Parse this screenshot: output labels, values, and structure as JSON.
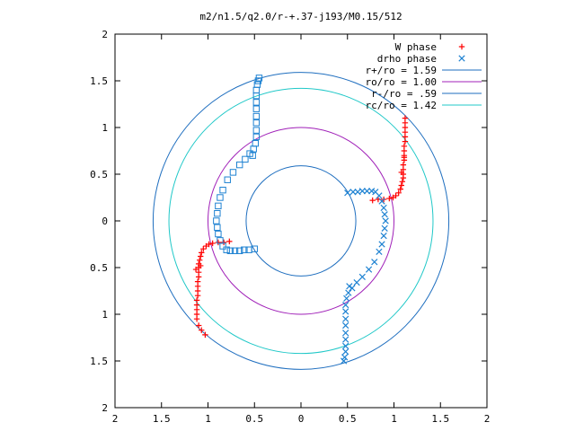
{
  "chart_data": {
    "type": "scatter",
    "title": "m2/n1.5/q2.0/r-+.37-j193/M0.15/512",
    "xlabel": "",
    "ylabel": "",
    "xlim": [
      -2,
      2
    ],
    "ylim": [
      -2,
      2
    ],
    "grid": false,
    "legend_position": "top-right",
    "x_tick_labels": [
      "2",
      "1.5",
      "1",
      "0.5",
      "0",
      "0.5",
      "1",
      "1.5",
      "2"
    ],
    "y_tick_labels": [
      "2",
      "1.5",
      "1",
      "0.5",
      "0",
      "0.5",
      "1",
      "1.5",
      "2"
    ],
    "x_ticks": [
      -2,
      -1.5,
      -1,
      -0.5,
      0,
      0.5,
      1,
      1.5,
      2
    ],
    "y_ticks": [
      -2,
      -1.5,
      -1,
      -0.5,
      0,
      0.5,
      1,
      1.5,
      2
    ],
    "circles": [
      {
        "name": "r+/ro = 1.59",
        "radius": 1.59,
        "color": "#1e6ebf"
      },
      {
        "name": "ro/ro = 1.00",
        "radius": 1.0,
        "color": "#a020b8"
      },
      {
        "name": "r-/ro = .59",
        "radius": 0.59,
        "color": "#1e6ebf"
      },
      {
        "name": "rc/ro = 1.42",
        "radius": 1.42,
        "color": "#20c8c8"
      }
    ],
    "series": [
      {
        "name": "W phase",
        "marker": "plus",
        "color": "#ff0000",
        "points": [
          [
            0.77,
            0.22
          ],
          [
            0.83,
            0.23
          ],
          [
            0.89,
            0.23
          ],
          [
            0.95,
            0.24
          ],
          [
            0.99,
            0.25
          ],
          [
            1.02,
            0.27
          ],
          [
            1.05,
            0.3
          ],
          [
            1.07,
            0.34
          ],
          [
            1.08,
            0.38
          ],
          [
            1.09,
            0.42
          ],
          [
            1.1,
            0.46
          ],
          [
            1.1,
            0.5
          ],
          [
            1.1,
            0.55
          ],
          [
            1.1,
            0.6
          ],
          [
            1.11,
            0.65
          ],
          [
            1.11,
            0.7
          ],
          [
            1.11,
            0.75
          ],
          [
            1.11,
            0.8
          ],
          [
            1.12,
            0.85
          ],
          [
            1.12,
            0.9
          ],
          [
            1.12,
            0.95
          ],
          [
            1.12,
            1.0
          ],
          [
            1.12,
            1.05
          ],
          [
            1.12,
            1.1
          ],
          [
            1.11,
            0.68
          ],
          [
            1.08,
            0.52
          ],
          [
            -0.77,
            -0.22
          ],
          [
            -0.83,
            -0.23
          ],
          [
            -0.89,
            -0.23
          ],
          [
            -0.95,
            -0.24
          ],
          [
            -0.99,
            -0.25
          ],
          [
            -1.02,
            -0.27
          ],
          [
            -1.05,
            -0.3
          ],
          [
            -1.07,
            -0.34
          ],
          [
            -1.08,
            -0.38
          ],
          [
            -1.09,
            -0.42
          ],
          [
            -1.1,
            -0.46
          ],
          [
            -1.1,
            -0.5
          ],
          [
            -1.1,
            -0.55
          ],
          [
            -1.1,
            -0.6
          ],
          [
            -1.11,
            -0.65
          ],
          [
            -1.11,
            -0.7
          ],
          [
            -1.11,
            -0.75
          ],
          [
            -1.11,
            -0.8
          ],
          [
            -1.12,
            -0.85
          ],
          [
            -1.12,
            -0.9
          ],
          [
            -1.12,
            -0.95
          ],
          [
            -1.12,
            -1.0
          ],
          [
            -1.12,
            -1.05
          ],
          [
            -1.1,
            -1.12
          ],
          [
            -1.07,
            -1.17
          ],
          [
            -1.03,
            -1.22
          ],
          [
            -1.08,
            -0.48
          ],
          [
            -1.13,
            -0.52
          ]
        ]
      },
      {
        "name": "drho phase",
        "marker": "x",
        "color": "#1e82d2",
        "points": [
          [
            0.5,
            0.3
          ],
          [
            0.56,
            0.31
          ],
          [
            0.61,
            0.31
          ],
          [
            0.66,
            0.32
          ],
          [
            0.71,
            0.32
          ],
          [
            0.76,
            0.32
          ],
          [
            0.8,
            0.31
          ],
          [
            0.84,
            0.27
          ],
          [
            0.87,
            0.21
          ],
          [
            0.89,
            0.14
          ],
          [
            0.9,
            0.07
          ],
          [
            0.91,
            0.0
          ],
          [
            0.9,
            -0.08
          ],
          [
            0.89,
            -0.16
          ],
          [
            0.87,
            -0.25
          ],
          [
            0.84,
            -0.33
          ],
          [
            0.79,
            -0.44
          ],
          [
            0.73,
            -0.52
          ],
          [
            0.66,
            -0.6
          ],
          [
            0.6,
            -0.66
          ],
          [
            0.55,
            -0.72
          ],
          [
            0.51,
            -0.77
          ],
          [
            0.49,
            -0.83
          ],
          [
            0.48,
            -0.9
          ],
          [
            0.48,
            -0.97
          ],
          [
            0.48,
            -1.05
          ],
          [
            0.48,
            -1.12
          ],
          [
            0.48,
            -1.2
          ],
          [
            0.48,
            -1.27
          ],
          [
            0.48,
            -1.34
          ],
          [
            0.48,
            -1.4
          ],
          [
            0.47,
            -1.46
          ],
          [
            0.46,
            -1.5
          ],
          [
            0.52,
            -0.7
          ]
        ]
      },
      {
        "name": "",
        "marker": "square",
        "color": "#1e82d2",
        "points": [
          [
            -0.5,
            -0.3
          ],
          [
            -0.56,
            -0.31
          ],
          [
            -0.61,
            -0.31
          ],
          [
            -0.66,
            -0.32
          ],
          [
            -0.71,
            -0.32
          ],
          [
            -0.76,
            -0.32
          ],
          [
            -0.8,
            -0.31
          ],
          [
            -0.84,
            -0.27
          ],
          [
            -0.87,
            -0.21
          ],
          [
            -0.89,
            -0.14
          ],
          [
            -0.9,
            -0.07
          ],
          [
            -0.91,
            0.0
          ],
          [
            -0.9,
            0.08
          ],
          [
            -0.89,
            0.16
          ],
          [
            -0.87,
            0.25
          ],
          [
            -0.84,
            0.33
          ],
          [
            -0.79,
            0.44
          ],
          [
            -0.73,
            0.52
          ],
          [
            -0.66,
            0.6
          ],
          [
            -0.6,
            0.66
          ],
          [
            -0.55,
            0.72
          ],
          [
            -0.51,
            0.77
          ],
          [
            -0.49,
            0.83
          ],
          [
            -0.48,
            0.9
          ],
          [
            -0.48,
            0.97
          ],
          [
            -0.48,
            1.05
          ],
          [
            -0.48,
            1.12
          ],
          [
            -0.48,
            1.2
          ],
          [
            -0.48,
            1.27
          ],
          [
            -0.48,
            1.34
          ],
          [
            -0.48,
            1.4
          ],
          [
            -0.47,
            1.46
          ],
          [
            -0.46,
            1.5
          ],
          [
            -0.45,
            1.53
          ],
          [
            -0.52,
            0.7
          ]
        ]
      }
    ]
  }
}
